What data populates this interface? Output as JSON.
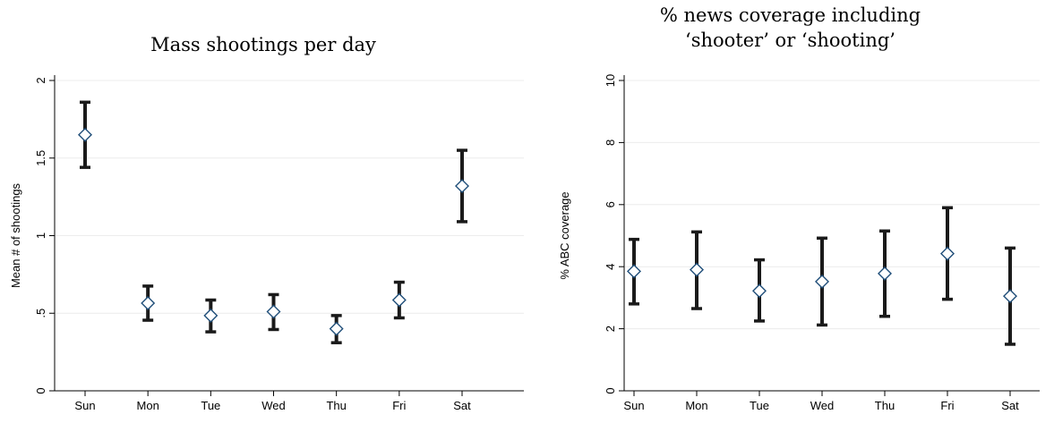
{
  "chart_data": [
    {
      "type": "scatter",
      "title": "Mass shootings per day",
      "xlabel": "",
      "ylabel": "Mean # of shootings",
      "categories": [
        "Sun",
        "Mon",
        "Tue",
        "Wed",
        "Thu",
        "Fri",
        "Sat"
      ],
      "ylim": [
        0,
        2
      ],
      "yticks": [
        "0",
        ".5",
        "1",
        "1.5",
        "2"
      ],
      "ytick_values": [
        0,
        0.5,
        1,
        1.5,
        2
      ],
      "grid": true,
      "series": [
        {
          "values": [
            1.65,
            0.565,
            0.485,
            0.51,
            0.4,
            0.585,
            1.32
          ],
          "lower": [
            1.44,
            0.455,
            0.38,
            0.395,
            0.31,
            0.47,
            1.09
          ],
          "upper": [
            1.86,
            0.675,
            0.585,
            0.62,
            0.485,
            0.7,
            1.55
          ]
        }
      ],
      "marker_color": "#1f4e79",
      "errorbar_color": "#1a1a1a"
    },
    {
      "type": "scatter",
      "title": "% news coverage including 'shooter' or 'shooting'",
      "title_lines": [
        "% news coverage including",
        "‘shooter’ or ‘shooting’"
      ],
      "xlabel": "",
      "ylabel": "% ABC coverage",
      "categories": [
        "Sun",
        "Mon",
        "Tue",
        "Wed",
        "Thu",
        "Fri",
        "Sat"
      ],
      "ylim": [
        0,
        10
      ],
      "yticks": [
        "0",
        "2",
        "4",
        "6",
        "8",
        "10"
      ],
      "ytick_values": [
        0,
        2,
        4,
        6,
        8,
        10
      ],
      "grid": true,
      "series": [
        {
          "values": [
            3.85,
            3.9,
            3.22,
            3.52,
            3.78,
            4.42,
            3.05
          ],
          "lower": [
            2.8,
            2.65,
            2.25,
            2.12,
            2.4,
            2.95,
            1.5
          ],
          "upper": [
            4.88,
            5.12,
            4.22,
            4.92,
            5.15,
            5.9,
            4.6
          ]
        }
      ],
      "marker_color": "#1f4e79",
      "errorbar_color": "#1a1a1a"
    }
  ]
}
